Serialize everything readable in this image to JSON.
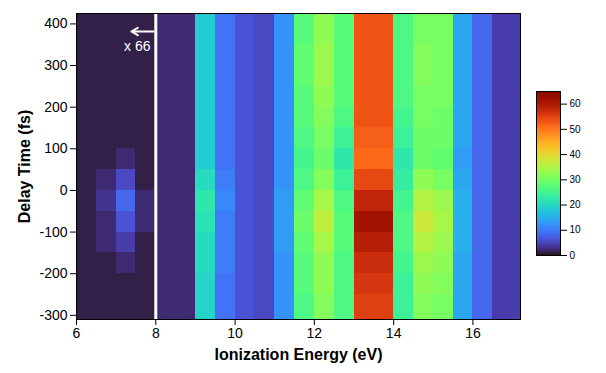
{
  "chart_data": {
    "type": "heatmap",
    "xlabel": "Ionization Energy (eV)",
    "ylabel": "Delay Time (fs)",
    "xlim": [
      6,
      17.2
    ],
    "ylim": [
      -310,
      425
    ],
    "xticks": [
      6,
      8,
      10,
      12,
      14,
      16
    ],
    "yticks": [
      -300,
      -200,
      -100,
      0,
      100,
      200,
      300,
      400
    ],
    "grid": false,
    "x_bins": [
      6,
      6.5,
      7,
      7.5,
      8,
      8.5,
      9,
      9.5,
      10,
      10.5,
      11,
      11.5,
      12,
      12.5,
      13,
      13.5,
      14,
      14.5,
      15,
      15.5,
      16,
      16.5,
      17.2
    ],
    "y_bins": [
      -310,
      -250,
      -200,
      -150,
      -100,
      -50,
      0,
      50,
      100,
      150,
      200,
      250,
      300,
      350,
      425
    ],
    "cells": [
      [
        1,
        1,
        1,
        1,
        2,
        2,
        19,
        9,
        6,
        5,
        12,
        26,
        31,
        26,
        55,
        55,
        24,
        31,
        30,
        14,
        8,
        4
      ],
      [
        1,
        1,
        1,
        1,
        2,
        2,
        19,
        9,
        6,
        5,
        12,
        27,
        32,
        26,
        56,
        56,
        24,
        32,
        31,
        14,
        8,
        4
      ],
      [
        1,
        1,
        2,
        1,
        2,
        2,
        20,
        10,
        6,
        5,
        12,
        27,
        32,
        26,
        57,
        57,
        25,
        33,
        32,
        14,
        8,
        4
      ],
      [
        1,
        2,
        4,
        1,
        2,
        2,
        20,
        10,
        6,
        5,
        13,
        28,
        34,
        27,
        59,
        59,
        26,
        35,
        33,
        15,
        8,
        4
      ],
      [
        1,
        2,
        6,
        2,
        2,
        2,
        21,
        10,
        6,
        5,
        13,
        29,
        36,
        27,
        61,
        61,
        26,
        37,
        34,
        15,
        8,
        4
      ],
      [
        1,
        3,
        8,
        2,
        2,
        2,
        22,
        11,
        6,
        5,
        13,
        28,
        34,
        26,
        58,
        58,
        25,
        35,
        33,
        15,
        8,
        4
      ],
      [
        1,
        2,
        5,
        1,
        2,
        2,
        20,
        10,
        6,
        5,
        12,
        26,
        31,
        24,
        54,
        54,
        23,
        32,
        30,
        14,
        8,
        4
      ],
      [
        1,
        1,
        2,
        1,
        2,
        2,
        18,
        9,
        6,
        5,
        12,
        25,
        29,
        22,
        51,
        51,
        22,
        29,
        28,
        13,
        8,
        4
      ],
      [
        1,
        1,
        1,
        1,
        2,
        2,
        18,
        9,
        6,
        5,
        12,
        26,
        30,
        24,
        52,
        52,
        24,
        29,
        29,
        14,
        8,
        4
      ],
      [
        1,
        1,
        1,
        1,
        2,
        2,
        18,
        9,
        6,
        5,
        12,
        27,
        31,
        26,
        53,
        53,
        25,
        30,
        29,
        14,
        8,
        4
      ],
      [
        1,
        1,
        1,
        1,
        2,
        2,
        18,
        9,
        6,
        5,
        12,
        27,
        32,
        27,
        53,
        53,
        26,
        30,
        30,
        14,
        8,
        4
      ],
      [
        1,
        1,
        1,
        1,
        2,
        2,
        18,
        9,
        6,
        5,
        12,
        28,
        33,
        27,
        53,
        53,
        26,
        31,
        30,
        14,
        8,
        4
      ],
      [
        1,
        1,
        1,
        1,
        2,
        2,
        18,
        9,
        6,
        5,
        12,
        28,
        33,
        27,
        53,
        53,
        26,
        31,
        30,
        14,
        8,
        4
      ],
      [
        1,
        1,
        1,
        1,
        2,
        2,
        18,
        9,
        6,
        5,
        12,
        27,
        32,
        27,
        53,
        53,
        26,
        30,
        30,
        14,
        8,
        4
      ]
    ],
    "colorbar_range": [
      0,
      65
    ],
    "colorbar_ticks": [
      0,
      10,
      20,
      30,
      40,
      50,
      60
    ],
    "annotations": [
      {
        "text": "x 66",
        "x": 8,
        "y": 345
      }
    ]
  }
}
